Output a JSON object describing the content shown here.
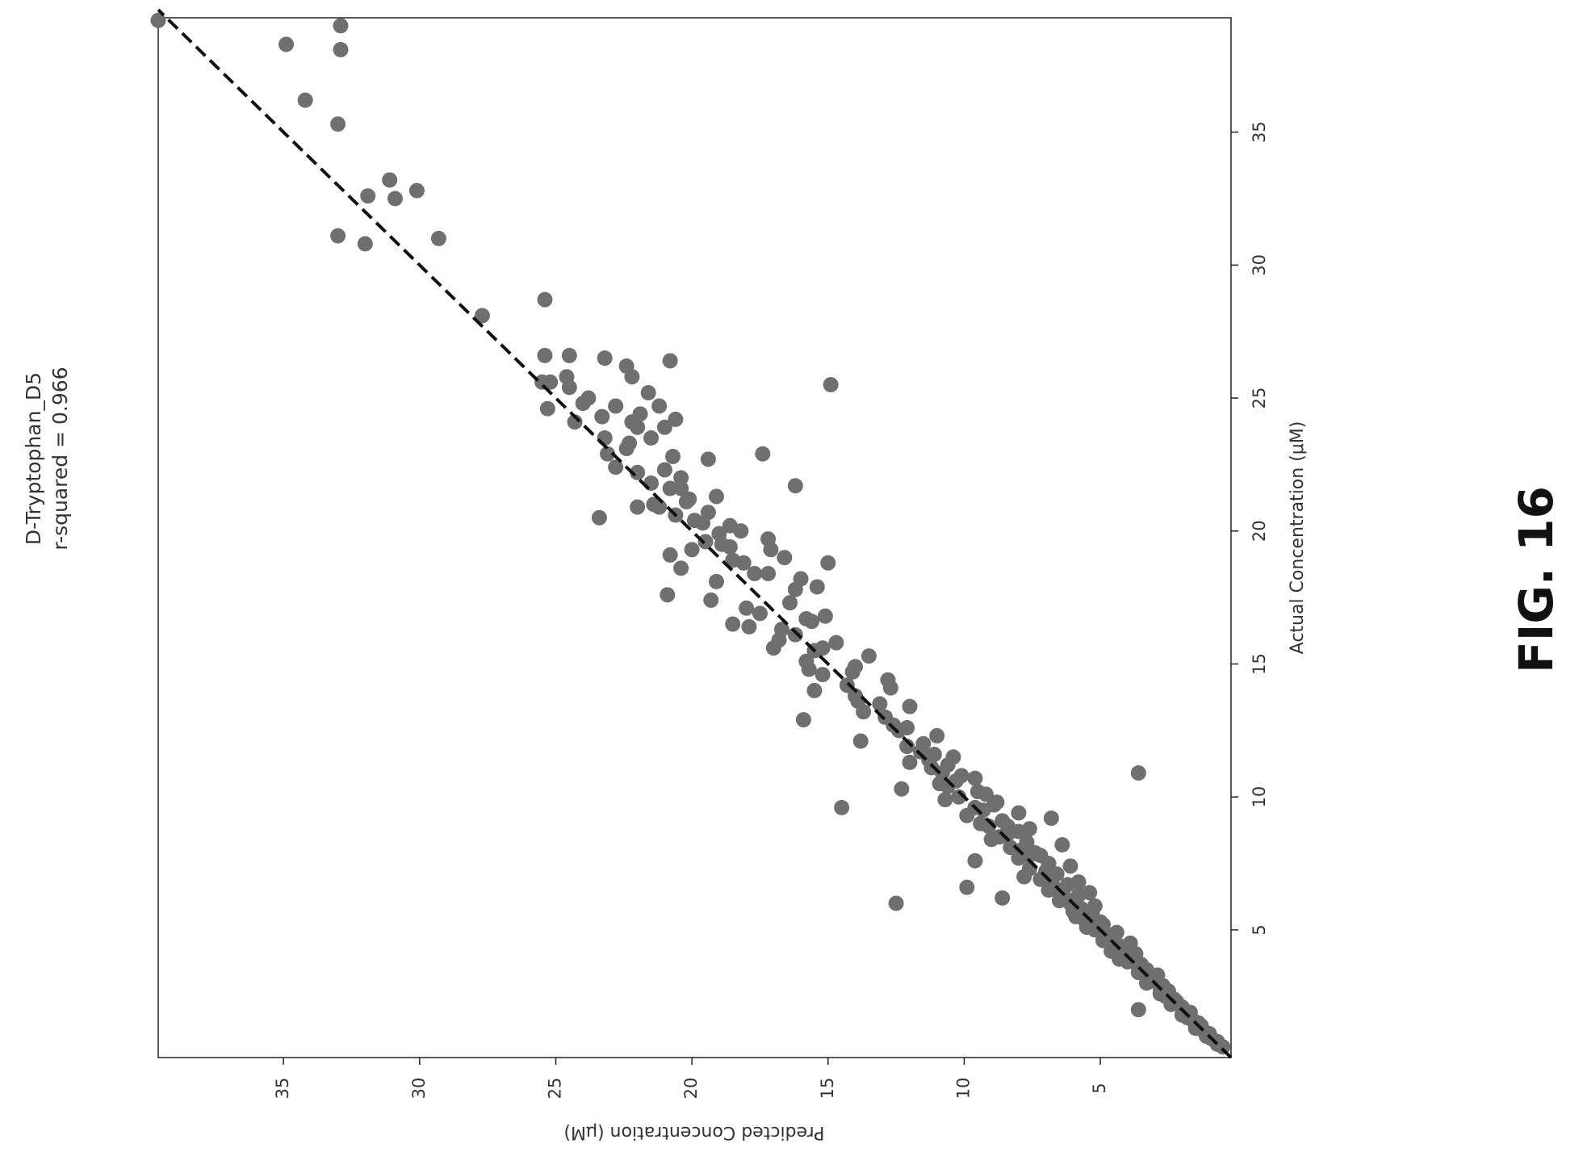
{
  "figure_label": "FIG. 16",
  "chart_data": {
    "type": "scatter",
    "title": "D-Tryptophan_D5",
    "subtitle": "r-squared = 0.966",
    "xlabel": "Actual Concentration (μM)",
    "ylabel": "Predicted Concentration (μM)",
    "xlim": [
      0.2,
      39.3
    ],
    "ylim": [
      0.2,
      39.6
    ],
    "x_ticks": [
      5,
      10,
      15,
      20,
      25,
      30,
      35
    ],
    "y_ticks": [
      5,
      10,
      15,
      20,
      25,
      30,
      35
    ],
    "x_tick_labels": [
      "5",
      "10",
      "15",
      "20",
      "25",
      "30",
      "35"
    ],
    "y_tick_labels": [
      "5",
      "10",
      "15",
      "20",
      "25",
      "30",
      "35"
    ],
    "grid": false,
    "orientation": "rotated 90 degrees counter-clockwise",
    "marker_color": "#6f6f6f",
    "fit_line": {
      "style": "dashed",
      "color": "#111111",
      "points": [
        [
          0.2,
          0.2
        ],
        [
          39.6,
          39.6
        ]
      ]
    },
    "points": [
      [
        39.2,
        39.6
      ],
      [
        38.3,
        34.9
      ],
      [
        39.0,
        32.9
      ],
      [
        38.1,
        32.9
      ],
      [
        36.2,
        34.2
      ],
      [
        35.3,
        33.0
      ],
      [
        33.2,
        31.1
      ],
      [
        32.5,
        30.9
      ],
      [
        32.6,
        31.9
      ],
      [
        32.8,
        30.1
      ],
      [
        31.1,
        33.0
      ],
      [
        30.8,
        32.0
      ],
      [
        31.0,
        29.3
      ],
      [
        28.1,
        27.7
      ],
      [
        28.7,
        25.4
      ],
      [
        26.6,
        25.4
      ],
      [
        26.6,
        24.5
      ],
      [
        26.5,
        23.2
      ],
      [
        26.4,
        20.8
      ],
      [
        26.2,
        22.4
      ],
      [
        25.8,
        24.6
      ],
      [
        25.8,
        22.2
      ],
      [
        25.6,
        25.2
      ],
      [
        25.6,
        25.5
      ],
      [
        25.4,
        24.5
      ],
      [
        25.5,
        14.9
      ],
      [
        25.2,
        21.6
      ],
      [
        25.0,
        23.8
      ],
      [
        24.8,
        24.0
      ],
      [
        24.7,
        21.2
      ],
      [
        24.7,
        22.8
      ],
      [
        24.6,
        25.3
      ],
      [
        24.4,
        21.9
      ],
      [
        24.2,
        20.6
      ],
      [
        24.1,
        24.3
      ],
      [
        24.1,
        22.2
      ],
      [
        23.9,
        22.0
      ],
      [
        23.9,
        21.0
      ],
      [
        23.5,
        21.5
      ],
      [
        23.5,
        23.2
      ],
      [
        23.3,
        22.3
      ],
      [
        22.9,
        23.1
      ],
      [
        22.9,
        17.4
      ],
      [
        22.8,
        20.7
      ],
      [
        22.7,
        19.4
      ],
      [
        22.4,
        22.8
      ],
      [
        22.2,
        22.0
      ],
      [
        22.0,
        20.4
      ],
      [
        21.8,
        21.5
      ],
      [
        21.7,
        16.2
      ],
      [
        21.6,
        20.8
      ],
      [
        21.6,
        20.4
      ],
      [
        21.3,
        19.1
      ],
      [
        21.1,
        20.2
      ],
      [
        21.0,
        21.4
      ],
      [
        20.9,
        21.2
      ],
      [
        20.9,
        22.0
      ],
      [
        20.7,
        19.4
      ],
      [
        20.6,
        20.6
      ],
      [
        20.5,
        23.4
      ],
      [
        20.4,
        19.9
      ],
      [
        20.3,
        19.6
      ],
      [
        20.2,
        18.6
      ],
      [
        20.0,
        18.2
      ],
      [
        19.9,
        19.0
      ],
      [
        19.7,
        17.2
      ],
      [
        19.6,
        19.5
      ],
      [
        19.5,
        18.9
      ],
      [
        19.3,
        17.1
      ],
      [
        19.3,
        20.0
      ],
      [
        19.1,
        20.8
      ],
      [
        19.0,
        16.6
      ],
      [
        18.9,
        18.5
      ],
      [
        18.8,
        18.1
      ],
      [
        18.8,
        15.0
      ],
      [
        18.6,
        20.4
      ],
      [
        18.4,
        17.7
      ],
      [
        18.2,
        16.0
      ],
      [
        18.1,
        19.1
      ],
      [
        17.9,
        15.4
      ],
      [
        17.8,
        16.2
      ],
      [
        17.6,
        20.9
      ],
      [
        17.4,
        19.3
      ],
      [
        17.1,
        18.0
      ],
      [
        16.9,
        17.5
      ],
      [
        16.8,
        15.1
      ],
      [
        16.7,
        15.8
      ],
      [
        16.5,
        18.5
      ],
      [
        16.4,
        17.9
      ],
      [
        16.3,
        16.7
      ],
      [
        16.1,
        16.2
      ],
      [
        15.9,
        16.8
      ],
      [
        15.8,
        14.7
      ],
      [
        15.6,
        17.0
      ],
      [
        15.5,
        15.5
      ],
      [
        15.3,
        13.5
      ],
      [
        15.1,
        15.8
      ],
      [
        14.9,
        14.0
      ],
      [
        14.8,
        15.7
      ],
      [
        14.6,
        15.2
      ],
      [
        14.4,
        12.8
      ],
      [
        14.2,
        14.3
      ],
      [
        14.1,
        12.7
      ],
      [
        14.0,
        15.5
      ],
      [
        13.8,
        14.0
      ],
      [
        13.6,
        13.9
      ],
      [
        13.4,
        12.0
      ],
      [
        13.2,
        13.7
      ],
      [
        13.0,
        12.9
      ],
      [
        12.9,
        15.9
      ],
      [
        12.7,
        12.6
      ],
      [
        12.5,
        12.4
      ],
      [
        12.3,
        11.0
      ],
      [
        12.1,
        13.8
      ],
      [
        11.9,
        12.1
      ],
      [
        11.7,
        11.6
      ],
      [
        11.5,
        10.4
      ],
      [
        11.3,
        12.0
      ],
      [
        11.1,
        11.2
      ],
      [
        10.9,
        10.8
      ],
      [
        10.9,
        3.6
      ],
      [
        10.7,
        9.6
      ],
      [
        10.5,
        10.9
      ],
      [
        10.3,
        12.3
      ],
      [
        10.1,
        9.2
      ],
      [
        10.0,
        10.2
      ],
      [
        9.8,
        8.8
      ],
      [
        9.6,
        14.5
      ],
      [
        9.6,
        9.6
      ],
      [
        9.4,
        8.0
      ],
      [
        9.2,
        6.8
      ],
      [
        9.0,
        9.4
      ],
      [
        8.8,
        7.6
      ],
      [
        8.6,
        8.4
      ],
      [
        8.4,
        9.0
      ],
      [
        8.2,
        6.4
      ],
      [
        8.0,
        7.9
      ],
      [
        7.8,
        7.2
      ],
      [
        7.6,
        9.6
      ],
      [
        7.4,
        6.1
      ],
      [
        7.2,
        7.0
      ],
      [
        7.0,
        7.8
      ],
      [
        6.8,
        5.8
      ],
      [
        6.6,
        6.7
      ],
      [
        6.6,
        9.9
      ],
      [
        6.4,
        5.4
      ],
      [
        6.2,
        6.3
      ],
      [
        6.2,
        8.6
      ],
      [
        6.0,
        12.5
      ],
      [
        5.9,
        5.2
      ],
      [
        5.7,
        6.0
      ],
      [
        5.5,
        5.9
      ],
      [
        5.3,
        5.0
      ],
      [
        5.1,
        5.5
      ],
      [
        4.9,
        4.4
      ],
      [
        4.7,
        4.8
      ],
      [
        4.5,
        3.9
      ],
      [
        4.3,
        4.2
      ],
      [
        4.1,
        3.7
      ],
      [
        3.9,
        4.3
      ],
      [
        3.7,
        3.5
      ],
      [
        3.5,
        3.3
      ],
      [
        3.3,
        2.9
      ],
      [
        3.1,
        3.1
      ],
      [
        2.9,
        2.7
      ],
      [
        2.7,
        2.5
      ],
      [
        2.5,
        2.6
      ],
      [
        2.3,
        2.2
      ],
      [
        2.1,
        2.0
      ],
      [
        2.0,
        3.6
      ],
      [
        1.9,
        1.7
      ],
      [
        1.7,
        1.8
      ],
      [
        1.5,
        1.4
      ],
      [
        1.3,
        1.5
      ],
      [
        1.1,
        1.0
      ],
      [
        0.9,
        0.9
      ],
      [
        0.7,
        0.7
      ],
      [
        0.6,
        0.5
      ],
      [
        12.0,
        11.5
      ],
      [
        11.6,
        11.1
      ],
      [
        11.2,
        10.6
      ],
      [
        10.8,
        10.1
      ],
      [
        10.4,
        10.6
      ],
      [
        10.2,
        9.5
      ],
      [
        9.9,
        10.7
      ],
      [
        9.7,
        8.9
      ],
      [
        9.3,
        9.9
      ],
      [
        9.1,
        8.6
      ],
      [
        8.9,
        9.1
      ],
      [
        8.7,
        8.0
      ],
      [
        8.5,
        8.7
      ],
      [
        8.3,
        7.7
      ],
      [
        8.1,
        8.3
      ],
      [
        7.9,
        7.4
      ],
      [
        7.7,
        8.0
      ],
      [
        7.5,
        6.9
      ],
      [
        7.3,
        7.6
      ],
      [
        7.1,
        6.6
      ],
      [
        6.9,
        7.2
      ],
      [
        6.7,
        6.2
      ],
      [
        6.5,
        6.9
      ],
      [
        6.3,
        5.8
      ],
      [
        6.1,
        6.5
      ],
      [
        5.8,
        5.7
      ],
      [
        5.6,
        5.3
      ],
      [
        5.4,
        5.6
      ],
      [
        5.2,
        4.9
      ],
      [
        5.0,
        5.2
      ],
      [
        4.8,
        4.6
      ],
      [
        4.6,
        4.9
      ],
      [
        4.4,
        4.3
      ],
      [
        4.2,
        4.6
      ],
      [
        4.0,
        3.9
      ],
      [
        3.8,
        4.0
      ],
      [
        3.6,
        3.6
      ],
      [
        3.4,
        3.6
      ],
      [
        3.2,
        3.0
      ],
      [
        3.0,
        3.3
      ],
      [
        2.8,
        2.8
      ],
      [
        2.6,
        2.8
      ],
      [
        2.4,
        2.3
      ],
      [
        2.2,
        2.4
      ],
      [
        1.8,
        2.0
      ],
      [
        1.6,
        1.6
      ],
      [
        1.4,
        1.3
      ],
      [
        1.2,
        1.2
      ],
      [
        1.0,
        1.1
      ],
      [
        0.8,
        0.7
      ],
      [
        16.6,
        15.6
      ],
      [
        17.3,
        16.4
      ],
      [
        18.4,
        17.2
      ],
      [
        19.4,
        18.6
      ],
      [
        21.2,
        20.1
      ],
      [
        22.3,
        21.0
      ],
      [
        23.1,
        22.4
      ],
      [
        24.3,
        23.3
      ],
      [
        15.6,
        15.2
      ],
      [
        14.7,
        14.1
      ],
      [
        13.5,
        13.1
      ],
      [
        12.6,
        12.1
      ],
      [
        11.4,
        11.3
      ],
      [
        10.6,
        10.3
      ],
      [
        9.5,
        9.3
      ],
      [
        8.9,
        8.4
      ],
      [
        7.8,
        7.6
      ],
      [
        7.0,
        6.8
      ],
      [
        6.0,
        6.1
      ]
    ]
  }
}
